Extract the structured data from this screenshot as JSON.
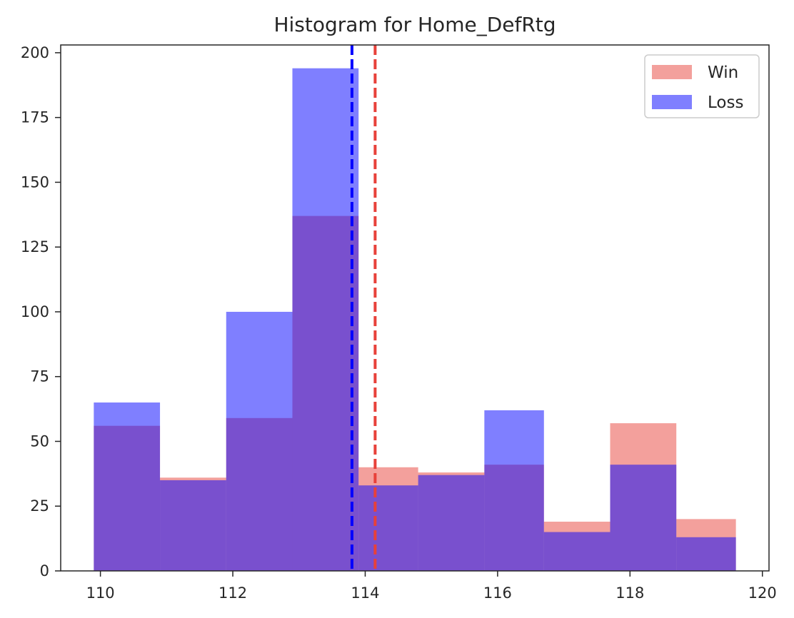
{
  "chart_data": {
    "type": "bar",
    "subtype": "overlaid-histogram",
    "title": "Histogram for Home_DefRtg",
    "xlabel": "",
    "ylabel": "",
    "xlim": [
      109.4,
      120.1
    ],
    "ylim": [
      0,
      203
    ],
    "xticks": [
      110,
      112,
      114,
      116,
      118,
      120
    ],
    "yticks": [
      0,
      25,
      50,
      75,
      100,
      125,
      150,
      175,
      200
    ],
    "bin_edges": [
      109.9,
      110.9,
      111.9,
      112.9,
      113.9,
      114.8,
      115.8,
      116.7,
      117.7,
      118.7,
      119.6
    ],
    "series": [
      {
        "name": "Win",
        "color": "#e8413a",
        "values": [
          56,
          36,
          59,
          137,
          40,
          38,
          41,
          19,
          57,
          20
        ]
      },
      {
        "name": "Loss",
        "color": "#0000ff",
        "values": [
          65,
          35,
          100,
          194,
          33,
          37,
          62,
          15,
          41,
          13
        ]
      }
    ],
    "mean_lines": [
      {
        "series": "Loss",
        "x": 113.8,
        "color": "#0000ff",
        "style": "dashed"
      },
      {
        "series": "Win",
        "x": 114.15,
        "color": "#e8413a",
        "style": "dashed"
      }
    ],
    "legend": {
      "position": "top-right",
      "entries": [
        "Win",
        "Loss"
      ]
    },
    "grid": false
  }
}
